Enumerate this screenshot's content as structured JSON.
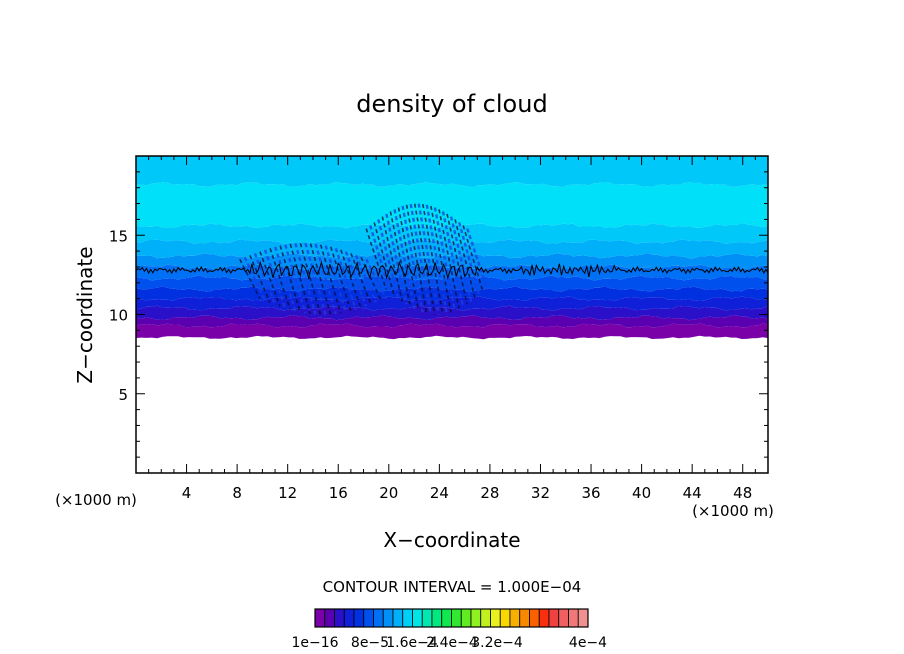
{
  "chart_data": {
    "type": "heatmap",
    "title": "density of cloud",
    "xlabel": "X−coordinate",
    "ylabel": "Z−coordinate",
    "x_unit_left": "(×1000 m)",
    "x_unit_right": "(×1000 m)",
    "xlim": [
      0,
      50
    ],
    "ylim": [
      0,
      20
    ],
    "x_ticks": [
      4,
      8,
      12,
      16,
      20,
      24,
      28,
      32,
      36,
      40,
      44,
      48
    ],
    "x_tick_labels": [
      "4",
      "8",
      "12",
      "16",
      "20",
      "24",
      "28",
      "32",
      "36",
      "40",
      "44",
      "48"
    ],
    "y_ticks": [
      5,
      10,
      15
    ],
    "y_tick_labels": [
      "5",
      "10",
      "15"
    ],
    "contour_interval_text": "CONTOUR INTERVAL = 1.000E−04",
    "colorbar": {
      "labels": [
        "1e−16",
        "8e−5",
        "1.6e−4",
        "2.4e−4",
        "3.2e−4",
        "4e−4"
      ],
      "colors": [
        "#7a00a8",
        "#5a00b0",
        "#2a10c8",
        "#1020d8",
        "#0030e0",
        "#0050ee",
        "#0070f4",
        "#0090f6",
        "#00b0f8",
        "#00d0f8",
        "#00e6e6",
        "#00e8b0",
        "#00e880",
        "#10e850",
        "#30e830",
        "#60ec20",
        "#90f020",
        "#c0f020",
        "#e8f020",
        "#f8d800",
        "#f8b000",
        "#f88800",
        "#f86000",
        "#f83010",
        "#f04040",
        "#f06060",
        "#f07878",
        "#f09090"
      ]
    },
    "layers": [
      {
        "z_min": 8.6,
        "z_max": 9.3,
        "color": "#7a00a8"
      },
      {
        "z_min": 9.3,
        "z_max": 9.8,
        "color": "#5a00b0"
      },
      {
        "z_min": 9.8,
        "z_max": 10.4,
        "color": "#2a10c8"
      },
      {
        "z_min": 10.4,
        "z_max": 11.0,
        "color": "#1020d8"
      },
      {
        "z_min": 11.0,
        "z_max": 11.6,
        "color": "#0030e0"
      },
      {
        "z_min": 11.6,
        "z_max": 12.3,
        "color": "#0050ee"
      },
      {
        "z_min": 12.3,
        "z_max": 13.0,
        "color": "#0070f4"
      },
      {
        "z_min": 13.0,
        "z_max": 13.7,
        "color": "#0090f6"
      },
      {
        "z_min": 13.7,
        "z_max": 14.6,
        "color": "#00b0f8"
      },
      {
        "z_min": 14.6,
        "z_max": 15.6,
        "color": "#00c8f8"
      },
      {
        "z_min": 15.6,
        "z_max": 18.2,
        "color": "#00e0f8"
      },
      {
        "z_min": 18.2,
        "z_max": 20.0,
        "color": "#00c8f8"
      }
    ],
    "contour_line": {
      "z": 12.8,
      "color": "#000000"
    },
    "disturbance_regions": [
      {
        "x_min": 9,
        "x_max": 19,
        "z_min": 10.5,
        "z_max": 15.0
      },
      {
        "x_min": 19,
        "x_max": 27,
        "z_min": 10.5,
        "z_max": 17.5
      }
    ]
  }
}
